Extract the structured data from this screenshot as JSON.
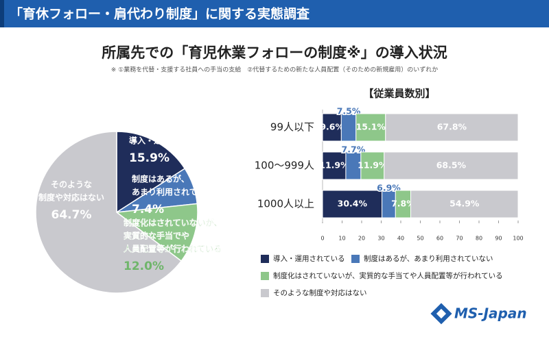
{
  "header": {
    "title": "「育休フォロー・肩代わり制度」に関する実態調査"
  },
  "chart_data": [
    {
      "type": "pie",
      "title": "所属先での「育児休業フォローの制度※」の導入状況",
      "subtitle": "※ ①業務を代替・支援する社員への手当の支給　②代替するための新たな人員配置（そのための新規雇用）のいずれか",
      "categories": [
        [
          "導入・運用されている"
        ],
        [
          "制度はあるが、",
          "あまり利用されていない"
        ],
        [
          "制度化はされていないが、",
          "実質的な手当でや",
          "人員配置等が行われている"
        ],
        [
          "そのような",
          "制度や対応はない"
        ]
      ],
      "values": [
        15.9,
        7.4,
        12.0,
        64.7
      ],
      "value_labels": [
        "15.9%",
        "7.4%",
        "12.0%",
        "64.7%"
      ],
      "colors": [
        "#1f2d5a",
        "#4a78b8",
        "#8ec78a",
        "#c9c9ce"
      ]
    },
    {
      "type": "stacked-bar",
      "title": "【従業員数別】",
      "categories": [
        "99人以下",
        "100～999人",
        "1000人以上"
      ],
      "series": [
        {
          "name": "導入・運用されている",
          "color": "#1f2d5a",
          "values": [
            9.6,
            11.9,
            30.4
          ],
          "value_labels": [
            "9.6%",
            "11.9%",
            "30.4%"
          ]
        },
        {
          "name": "制度はあるが、あまり利用されていない",
          "color": "#4a78b8",
          "values": [
            7.5,
            7.7,
            6.9
          ],
          "value_labels": [
            "7.5%",
            "7.7%",
            "6.9%"
          ]
        },
        {
          "name": "制度化はされていないが、実質的な手当てや人員配置等が行われている",
          "color": "#8ec78a",
          "values": [
            15.1,
            11.9,
            7.8
          ],
          "value_labels": [
            "15.1%",
            "11.9%",
            "7.8%"
          ]
        },
        {
          "name": "そのような制度や対応はない",
          "color": "#c9c9ce",
          "values": [
            67.8,
            68.5,
            54.9
          ],
          "value_labels": [
            "67.8%",
            "68.5%",
            "54.9%"
          ]
        }
      ],
      "xlim": [
        0,
        100
      ],
      "xticks": [
        0,
        10,
        20,
        30,
        40,
        50,
        60,
        70,
        80,
        90,
        100
      ]
    }
  ],
  "logo": "MS-Japan"
}
